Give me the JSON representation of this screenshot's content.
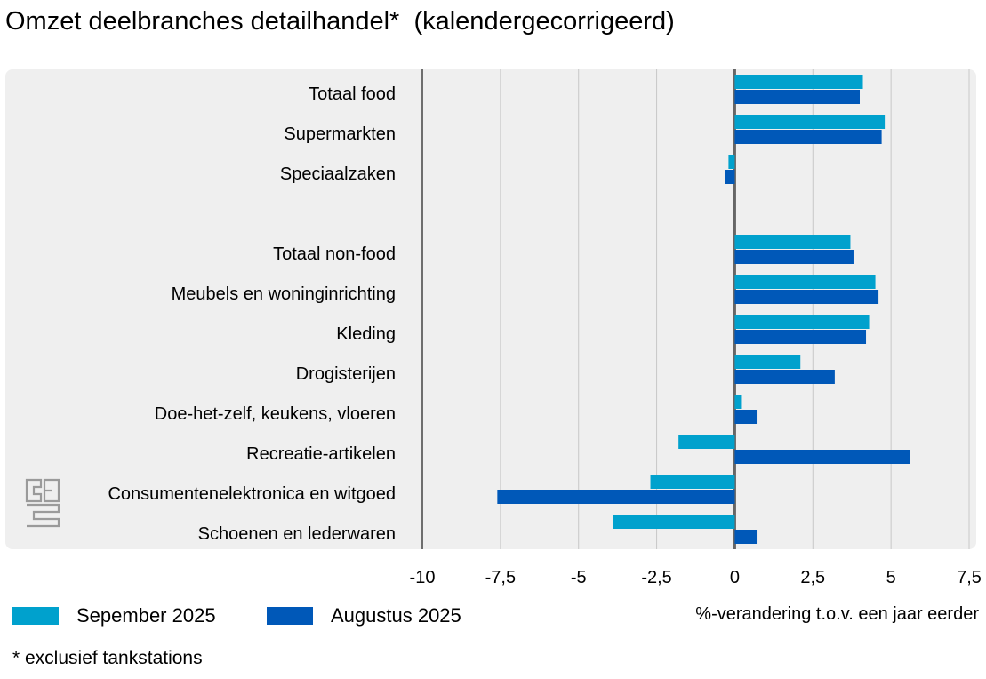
{
  "chart_data": {
    "type": "bar",
    "orientation": "horizontal",
    "title": "Omzet deelbranches detailhandel*  (kalendergecorrigeerd)",
    "xlabel": "%-verandering t.o.v. een jaar eerder",
    "xlim": [
      -10,
      7.5
    ],
    "ticks": [
      -10,
      -7.5,
      -5,
      -2.5,
      0,
      2.5,
      5,
      7.5
    ],
    "tick_labels": [
      "-10",
      "-7,5",
      "-5",
      "-2,5",
      "0",
      "2,5",
      "5",
      "7,5"
    ],
    "grid": true,
    "legend_position": "bottom-left",
    "categories": [
      "Totaal food",
      "Supermarkten",
      "Speciaalzaken",
      "",
      "Totaal non-food",
      "Meubels en woninginrichting",
      "Kleding",
      "Drogisterijen",
      "Doe-het-zelf, keukens, vloeren",
      "Recreatie-artikelen",
      "Consumentenelektronica en witgoed",
      "Schoenen en lederwaren"
    ],
    "series": [
      {
        "name": "Sepember 2025",
        "color": "#00a1cd",
        "values": [
          4.1,
          4.8,
          -0.2,
          null,
          3.7,
          4.5,
          4.3,
          2.1,
          0.2,
          -1.8,
          -2.7,
          -3.9
        ]
      },
      {
        "name": "Augustus 2025",
        "color": "#0058b8",
        "values": [
          4.0,
          4.7,
          -0.3,
          null,
          3.8,
          4.6,
          4.2,
          3.2,
          0.7,
          5.6,
          -7.6,
          0.7
        ]
      }
    ]
  },
  "footnote": "* exclusief tankstations",
  "colors": {
    "panel": "#efefef",
    "grid": "#c8c8c8",
    "axis": "#555555"
  },
  "logo_text": "cbs",
  "logo_icon": "cbs-logo-icon"
}
